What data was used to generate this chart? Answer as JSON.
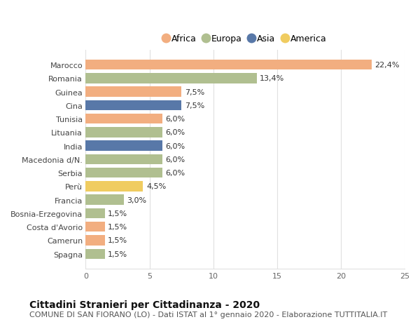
{
  "title": "Cittadini Stranieri per Cittadinanza - 2020",
  "subtitle": "COMUNE DI SAN FIORANO (LO) - Dati ISTAT al 1° gennaio 2020 - Elaborazione TUTTITALIA.IT",
  "countries": [
    "Marocco",
    "Romania",
    "Guinea",
    "Cina",
    "Tunisia",
    "Lituania",
    "India",
    "Macedonia d/N.",
    "Serbia",
    "Perù",
    "Francia",
    "Bosnia-Erzegovina",
    "Costa d'Avorio",
    "Camerun",
    "Spagna"
  ],
  "values": [
    22.4,
    13.4,
    7.5,
    7.5,
    6.0,
    6.0,
    6.0,
    6.0,
    6.0,
    4.5,
    3.0,
    1.5,
    1.5,
    1.5,
    1.5
  ],
  "continents": [
    "Africa",
    "Europa",
    "Africa",
    "Asia",
    "Africa",
    "Europa",
    "Asia",
    "Europa",
    "Europa",
    "America",
    "Europa",
    "Europa",
    "Africa",
    "Africa",
    "Europa"
  ],
  "labels": [
    "22,4%",
    "13,4%",
    "7,5%",
    "7,5%",
    "6,0%",
    "6,0%",
    "6,0%",
    "6,0%",
    "6,0%",
    "4,5%",
    "3,0%",
    "1,5%",
    "1,5%",
    "1,5%",
    "1,5%"
  ],
  "continent_colors": {
    "Africa": "#f2ae80",
    "Europa": "#b0bf90",
    "Asia": "#5878a8",
    "America": "#f0cc60"
  },
  "legend_order": [
    "Africa",
    "Europa",
    "Asia",
    "America"
  ],
  "xlim": [
    0,
    25
  ],
  "xticks": [
    0,
    5,
    10,
    15,
    20,
    25
  ],
  "background_color": "#ffffff",
  "grid_color": "#e0e0e0",
  "bar_height": 0.75,
  "title_fontsize": 10,
  "subtitle_fontsize": 8,
  "tick_fontsize": 8,
  "label_fontsize": 8,
  "legend_fontsize": 9
}
